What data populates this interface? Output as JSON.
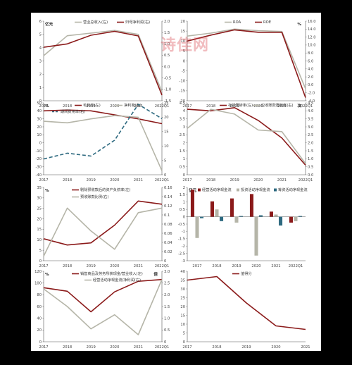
{
  "watermark": "诗佳网",
  "colors": {
    "red": "#8b1a1a",
    "gray": "#b5b5a8",
    "gray2": "#bdbdb0",
    "blue": "#2e6a80",
    "axis": "#555555",
    "grid": "#cccccc"
  },
  "chart_data": [
    {
      "type": "line",
      "x": [
        "2017",
        "2018",
        "2019",
        "2020",
        "2021",
        "2022Q1"
      ],
      "yunit_left": "亿元",
      "ylim_left": [
        0,
        6
      ],
      "yticks_left": [
        "0",
        "1",
        "2",
        "3",
        "4",
        "5",
        "6"
      ],
      "ylim_right": [
        -1.5,
        2.0
      ],
      "yticks_right": [
        "-1.5",
        "-1.0",
        "-0.5",
        "0.0",
        "0.5",
        "1.0",
        "1.5",
        "2.0"
      ],
      "series": [
        {
          "name": "营业总收入(左)",
          "axis": "left",
          "color": "gray",
          "values": [
            3.4,
            4.9,
            5.1,
            5.3,
            5.0,
            0.7
          ]
        },
        {
          "name": "归母净利润(右)",
          "axis": "right",
          "color": "red",
          "values": [
            0.85,
            1.0,
            1.38,
            1.55,
            1.35,
            -1.25
          ]
        }
      ]
    },
    {
      "type": "line",
      "x": [
        "2017",
        "2018",
        "2019",
        "2020",
        "2021",
        "2022Q1"
      ],
      "yunit_right": "%",
      "ylim_left": [
        -20,
        20
      ],
      "yticks_left": [
        "-20",
        "-15",
        "-10",
        "-5",
        "0",
        "5",
        "10",
        "15",
        "20"
      ],
      "ylim_right": [
        -4,
        16
      ],
      "yticks_right": [
        "-4.0",
        "-2.0",
        "0.0",
        "2.0",
        "4.0",
        "6.0",
        "8.0",
        "10.0",
        "12.0",
        "14.0",
        "16.0"
      ],
      "series": [
        {
          "name": "ROA",
          "axis": "left",
          "color": "gray",
          "values": [
            12.5,
            14.0,
            16.0,
            15.2,
            14.8,
            -14.0
          ]
        },
        {
          "name": "ROE",
          "axis": "right",
          "color": "red",
          "values": [
            11.0,
            12.5,
            13.8,
            13.2,
            13.2,
            -3.2
          ]
        }
      ]
    },
    {
      "type": "line",
      "x": [
        "2017",
        "2018",
        "2019",
        "2020",
        "2021",
        "2022Q1"
      ],
      "yunit_left": "%",
      "ylim_left": [
        -40,
        50
      ],
      "yticks_left": [
        "-40",
        "-30",
        "-20",
        "-10",
        "0",
        "10",
        "20",
        "30",
        "40",
        "50"
      ],
      "ylim_right": [
        0,
        25
      ],
      "yticks_right": [
        "0",
        "5",
        "10",
        "15",
        "20",
        "25"
      ],
      "series": [
        {
          "name": "毛利率(左)",
          "axis": "left",
          "color": "red",
          "values": [
            40,
            41,
            40,
            35,
            30,
            24
          ]
        },
        {
          "name": "净利率(左)",
          "axis": "left",
          "color": "gray",
          "values": [
            27,
            25,
            30,
            34,
            32,
            -35
          ]
        },
        {
          "name": "期间费用率(右)",
          "axis": "right",
          "color": "blue",
          "dashed": true,
          "values": [
            5.5,
            7.5,
            6.5,
            12.0,
            24.5,
            19.5
          ]
        }
      ]
    },
    {
      "type": "line",
      "x": [
        "2017",
        "2018",
        "2019",
        "2020",
        "2021",
        "2022Q1"
      ],
      "yunit_right": "次",
      "ylim_left": [
        0,
        4.5
      ],
      "yticks_left": [
        "0",
        "0.5",
        "1",
        "1.5",
        "2",
        "2.5",
        "3",
        "3.5",
        "4",
        "4.5"
      ],
      "ylim_right": [
        0,
        4.5
      ],
      "yticks_right": [
        "0.0",
        "0.5",
        "1.0",
        "1.5",
        "2.0",
        "2.5",
        "3.0",
        "3.5",
        "4.0",
        "4.5"
      ],
      "series": [
        {
          "name": "存货周转率(左)",
          "axis": "left",
          "color": "red",
          "values": [
            4.1,
            4.0,
            4.2,
            3.4,
            2.3,
            0.6
          ]
        },
        {
          "name": "应收账款周转率(右)",
          "axis": "right",
          "color": "gray",
          "values": [
            2.9,
            4.1,
            3.8,
            2.8,
            2.7,
            0.7
          ]
        }
      ]
    },
    {
      "type": "line",
      "x": [
        "2017",
        "2018",
        "2019",
        "2020",
        "2021",
        "2022Q1"
      ],
      "yunit_left": "%",
      "ylim_left": [
        0,
        35
      ],
      "yticks_left": [
        "0",
        "5",
        "10",
        "15",
        "20",
        "25",
        "30",
        "35"
      ],
      "ylim_right": [
        0,
        0.16
      ],
      "yticks_right": [
        "0",
        "0.02",
        "0.04",
        "0.06",
        "0.08",
        "0.1",
        "0.12",
        "0.14",
        "0.16"
      ],
      "series": [
        {
          "name": "剔除预收款后的资产负债率(左)",
          "axis": "left",
          "color": "red",
          "values": [
            10.5,
            7.5,
            8.5,
            17.0,
            28.5,
            27.0
          ]
        },
        {
          "name": "预收账款比例(右)",
          "axis": "right",
          "color": "gray",
          "values": [
            0.01,
            0.115,
            0.065,
            0.025,
            0.105,
            0.115
          ]
        }
      ]
    },
    {
      "type": "bar",
      "categories": [
        "2017",
        "2018",
        "2019",
        "2020",
        "2021",
        "2022Q1"
      ],
      "yunit_left": "亿元",
      "ylim": [
        -3,
        2
      ],
      "yticks": [
        "-3",
        "-2.5",
        "-2",
        "-1.5",
        "-1",
        "-0.5",
        "0",
        "0.5",
        "1",
        "1.5",
        "2"
      ],
      "series": [
        {
          "name": "经营活动净现金流",
          "color": "red",
          "values": [
            1.85,
            1.05,
            1.25,
            1.55,
            0.35,
            -0.4
          ]
        },
        {
          "name": "投资活动净现金流",
          "color": "gray",
          "values": [
            -1.45,
            0.5,
            -0.4,
            -2.65,
            0.15,
            -0.3
          ]
        },
        {
          "name": "筹资活动净现金流",
          "color": "blue",
          "values": [
            -0.1,
            -0.3,
            0.05,
            0.1,
            -0.6,
            0.05
          ]
        }
      ]
    },
    {
      "type": "line",
      "x": [
        "2017",
        "2018",
        "2019",
        "2020",
        "2021",
        "2022Q1"
      ],
      "yunit_left": "%",
      "yunit_right": "倍",
      "ylim_left": [
        0,
        120
      ],
      "yticks_left": [
        "0",
        "20",
        "40",
        "60",
        "80",
        "100",
        "120"
      ],
      "ylim_right": [
        0,
        3.0
      ],
      "yticks_right": [
        "0",
        "0.5",
        "1.0",
        "1.5",
        "2.0",
        "2.5",
        "3.0"
      ],
      "series": [
        {
          "name": "销售商品及劳务所获现金/营业收入(左)",
          "axis": "left",
          "color": "red",
          "values": [
            92,
            86,
            51,
            85,
            103,
            106
          ]
        },
        {
          "name": "经营活动净现金流/净利润(右)",
          "axis": "right",
          "color": "gray",
          "values": [
            2.25,
            1.5,
            0.55,
            1.15,
            0.3,
            2.65
          ]
        }
      ]
    },
    {
      "type": "line",
      "x": [
        "2017",
        "2018",
        "2019",
        "2020",
        "2021"
      ],
      "ylim_left": [
        0,
        40
      ],
      "yticks_left": [
        "0",
        "5",
        "10",
        "15",
        "20",
        "25",
        "30",
        "35",
        "40"
      ],
      "series": [
        {
          "name": "值得分",
          "axis": "left",
          "color": "red",
          "values": [
            35,
            37,
            22,
            9,
            7
          ]
        }
      ]
    }
  ]
}
